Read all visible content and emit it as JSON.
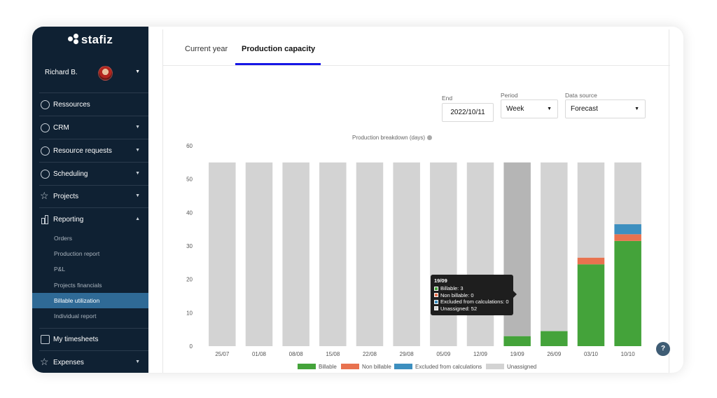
{
  "app": {
    "brand": "stafiz"
  },
  "user": {
    "name": "Richard B."
  },
  "sidebar": {
    "items": [
      {
        "label": "Ressources",
        "icon": "user-circle-icon"
      },
      {
        "label": "CRM",
        "icon": "user-circle-icon"
      },
      {
        "label": "Resource requests",
        "icon": "user-circle-icon"
      },
      {
        "label": "Scheduling",
        "icon": "clock-icon"
      },
      {
        "label": "Projects",
        "icon": "star-icon"
      },
      {
        "label": "Reporting",
        "icon": "bar-chart-icon"
      },
      {
        "label": "My timesheets",
        "icon": "calendar-icon"
      },
      {
        "label": "Expenses",
        "icon": "star-icon"
      }
    ],
    "reporting_sub": [
      "Orders",
      "Production report",
      "P&L",
      "Projects financials",
      "Billable utilization",
      "Individual report"
    ],
    "active_sub": "Billable utilization"
  },
  "tabs": [
    {
      "label": "Current year"
    },
    {
      "label": "Production capacity"
    }
  ],
  "active_tab": "Production capacity",
  "filters": {
    "end_label": "End",
    "end_value": "2022/10/11",
    "period_label": "Period",
    "period_value": "Week",
    "source_label": "Data source",
    "source_value": "Forecast"
  },
  "colors": {
    "billable": "#44a33a",
    "non_billable": "#e8724f",
    "excluded": "#3d8fbf",
    "unassigned": "#d3d3d3",
    "hover": "#b5b5b5",
    "accent": "#1717e6",
    "sidebar_bg": "#0f2133"
  },
  "tooltip": {
    "title": "19/09",
    "rows": [
      "Billable: 3",
      "Non billable: 0",
      "Excluded from calculations: 0",
      "Unassigned: 52"
    ]
  },
  "chart_data": {
    "type": "bar",
    "stacked": true,
    "title": "Production breakdown (days)",
    "categories": [
      "25/07",
      "01/08",
      "08/08",
      "15/08",
      "22/08",
      "29/08",
      "05/09",
      "12/09",
      "19/09",
      "26/09",
      "03/10",
      "10/10"
    ],
    "series": [
      {
        "name": "Billable",
        "values": [
          0,
          0,
          0,
          0,
          0,
          0,
          0,
          0,
          3,
          4.5,
          24.5,
          31.5
        ]
      },
      {
        "name": "Non billable",
        "values": [
          0,
          0,
          0,
          0,
          0,
          0,
          0,
          0,
          0,
          0,
          2,
          2
        ]
      },
      {
        "name": "Excluded from calculations",
        "values": [
          0,
          0,
          0,
          0,
          0,
          0,
          0,
          0,
          0,
          0,
          0,
          3
        ]
      },
      {
        "name": "Unassigned",
        "values": [
          55,
          55,
          55,
          55,
          55,
          55,
          55,
          55,
          52,
          50.5,
          28.5,
          18.5
        ]
      }
    ],
    "yticks": [
      0,
      10,
      20,
      30,
      40,
      50,
      60
    ],
    "ylim": [
      0,
      60
    ],
    "grid": false,
    "legend": "bottom",
    "highlighted": "19/09"
  }
}
